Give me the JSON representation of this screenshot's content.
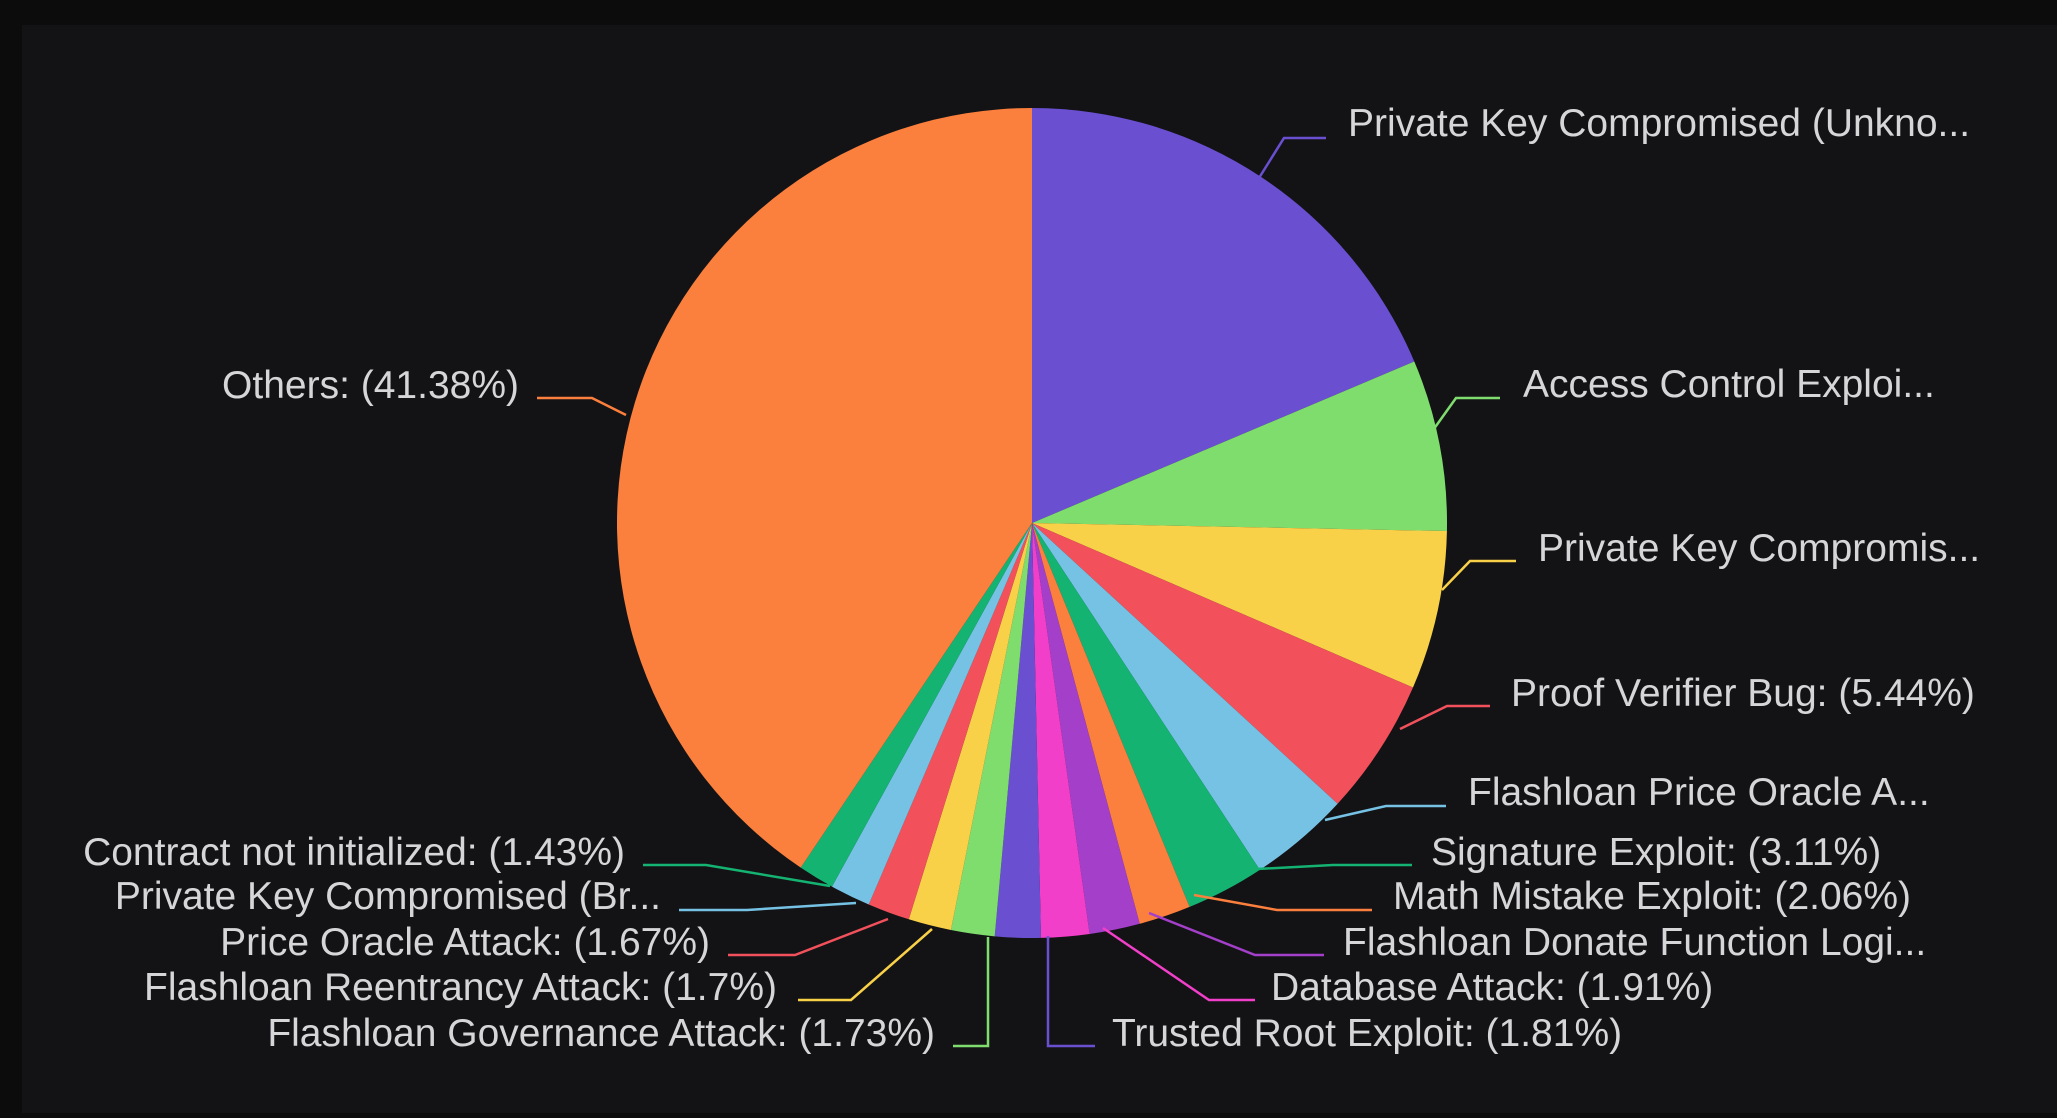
{
  "chart_data": {
    "type": "pie",
    "start": "12 o'clock, clockwise",
    "slices": [
      {
        "label": "Private Key Compromised (Unkno...",
        "display": "Private Key Compromised (Unkno...",
        "value": 19.0,
        "color": "#6a4fd1"
      },
      {
        "label": "Access Control Exploi...",
        "display": "Access Control Exploi...",
        "value": 6.8,
        "color": "#7fdd6e"
      },
      {
        "label": "Private Key Compromis...",
        "display": "Private Key Compromis...",
        "value": 6.3,
        "color": "#f9d148"
      },
      {
        "label": "Proof Verifier Bug",
        "display": "Proof Verifier Bug: (5.44%)",
        "value": 5.44,
        "color": "#f2515c"
      },
      {
        "label": "Flashloan Price Oracle A...",
        "display": "Flashloan Price Oracle A...",
        "value": 4.0,
        "color": "#76c2e4"
      },
      {
        "label": "Signature Exploit",
        "display": "Signature Exploit: (3.11%)",
        "value": 3.11,
        "color": "#14b372"
      },
      {
        "label": "Math Mistake Exploit",
        "display": "Math Mistake Exploit: (2.06%)",
        "value": 2.06,
        "color": "#fb7f3d"
      },
      {
        "label": "Flashloan Donate Function Logi...",
        "display": "Flashloan Donate Function Logi...",
        "value": 2.0,
        "color": "#a43fca"
      },
      {
        "label": "Database Attack",
        "display": "Database Attack: (1.91%)",
        "value": 1.91,
        "color": "#f23fc9"
      },
      {
        "label": "Trusted Root Exploit",
        "display": "Trusted Root Exploit: (1.81%)",
        "value": 1.81,
        "color": "#6a4fd1"
      },
      {
        "label": "Flashloan Governance Attack",
        "display": "Flashloan Governance Attack: (1.73%)",
        "value": 1.73,
        "color": "#7fdd6e"
      },
      {
        "label": "Flashloan Reentrancy Attack",
        "display": "Flashloan Reentrancy Attack: (1.7%)",
        "value": 1.7,
        "color": "#f9d148"
      },
      {
        "label": "Price Oracle Attack",
        "display": "Price Oracle Attack: (1.67%)",
        "value": 1.67,
        "color": "#f2515c"
      },
      {
        "label": "Private Key Compromised (Br...",
        "display": "Private Key Compromised (Br...",
        "value": 1.6,
        "color": "#76c2e4"
      },
      {
        "label": "Contract not initialized",
        "display": "Contract not initialized: (1.43%)",
        "value": 1.43,
        "color": "#14b372"
      },
      {
        "label": "Others",
        "display": "Others: (41.38%)",
        "value": 41.38,
        "color": "#fb7f3d"
      }
    ]
  }
}
